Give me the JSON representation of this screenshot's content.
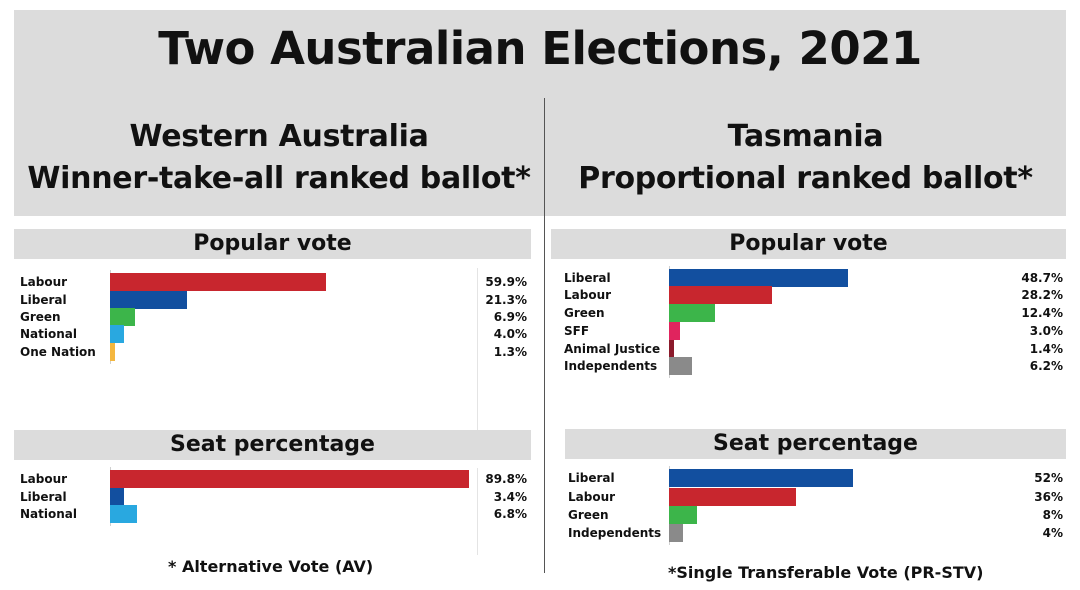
{
  "title": "Two Australian Elections, 2021",
  "left": {
    "heading": "Western Australia",
    "subheading": "Winner-take-all ranked ballot*",
    "footnote": "* Alternative Vote (AV)"
  },
  "right": {
    "heading": "Tasmania",
    "subheading": "Proportional ranked ballot*",
    "footnote": "*Single Transferable Vote (PR-STV)"
  },
  "chart_data": [
    {
      "type": "bar",
      "orientation": "horizontal",
      "panel": "Western Australia",
      "title": "Popular vote",
      "categories": [
        "Labour",
        "Liberal",
        "Green",
        "National",
        "One Nation"
      ],
      "values": [
        59.9,
        21.3,
        6.9,
        4.0,
        1.3
      ],
      "value_labels": [
        "59.9%",
        "21.3%",
        "6.9%",
        "4.0%",
        "1.3%"
      ],
      "colors": [
        "#c8262e",
        "#124f9f",
        "#3cb54a",
        "#29a8e0",
        "#f4b73f"
      ],
      "xlim": [
        0,
        100
      ],
      "grid": false
    },
    {
      "type": "bar",
      "orientation": "horizontal",
      "panel": "Western Australia",
      "title": "Seat percentage",
      "categories": [
        "Labour",
        "Liberal",
        "National"
      ],
      "values": [
        89.8,
        3.4,
        6.8
      ],
      "value_labels": [
        "89.8%",
        "3.4%",
        "6.8%"
      ],
      "colors": [
        "#c8262e",
        "#124f9f",
        "#29a8e0"
      ],
      "xlim": [
        0,
        100
      ],
      "grid": false
    },
    {
      "type": "bar",
      "orientation": "horizontal",
      "panel": "Tasmania",
      "title": "Popular vote",
      "categories": [
        "Liberal",
        "Labour",
        "Green",
        "SFF",
        "Animal Justice",
        "Independents"
      ],
      "values": [
        48.7,
        28.2,
        12.4,
        3.0,
        1.4,
        6.2
      ],
      "value_labels": [
        "48.7%",
        "28.2%",
        "12.4%",
        "3.0%",
        "1.4%",
        "6.2%"
      ],
      "colors": [
        "#124f9f",
        "#c8262e",
        "#3cb54a",
        "#e0245e",
        "#8b1a2b",
        "#8a8a8a"
      ],
      "xlim": [
        0,
        100
      ],
      "grid": false
    },
    {
      "type": "bar",
      "orientation": "horizontal",
      "panel": "Tasmania",
      "title": "Seat percentage",
      "categories": [
        "Liberal",
        "Labour",
        "Green",
        "Independents"
      ],
      "values": [
        52,
        36,
        8,
        4
      ],
      "value_labels": [
        "52%",
        "36%",
        "8%",
        "4%"
      ],
      "colors": [
        "#124f9f",
        "#c8262e",
        "#3cb54a",
        "#8a8a8a"
      ],
      "xlim": [
        0,
        100
      ],
      "grid": false
    }
  ]
}
